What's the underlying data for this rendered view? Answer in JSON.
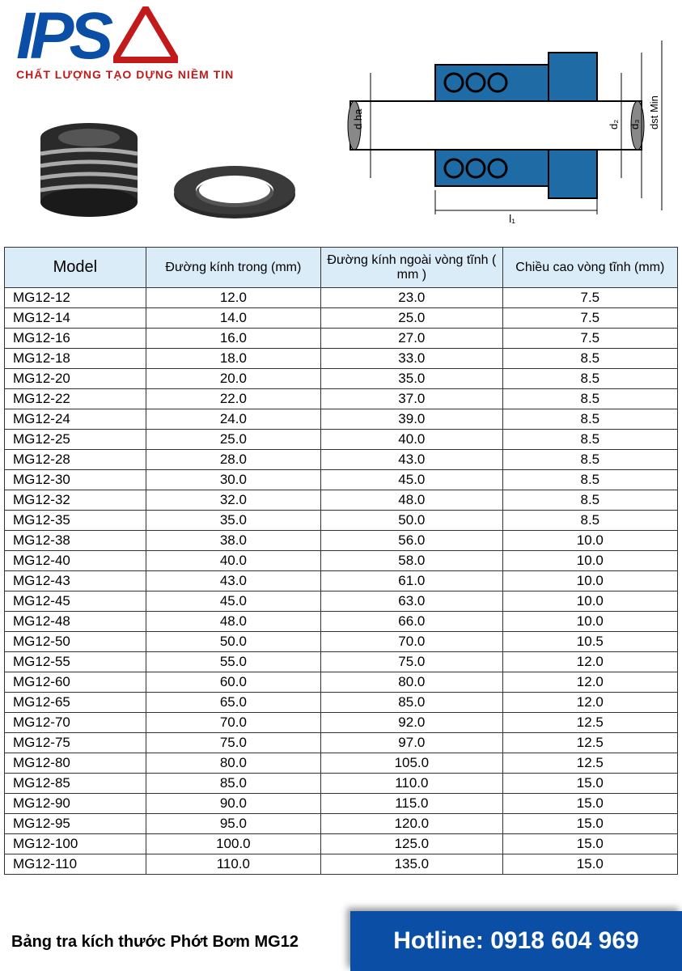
{
  "logo": {
    "text": "IPS",
    "slogan": "CHẤT LƯỢNG TẠO DỰNG NIỀM TIN",
    "brand_blue": "#0a4fa5",
    "brand_red": "#c21a1a"
  },
  "diagram_labels": {
    "d_ha": "d ha",
    "d2": "d₂",
    "d3": "d₃",
    "dst": "dst Min",
    "l1": "l₁"
  },
  "table": {
    "header_bg": "#dbecf9",
    "border_color": "#333333",
    "columns": [
      "Model",
      "Đường kính trong (mm)",
      "Đường kính ngoài vòng tĩnh ( mm )",
      "Chiều cao vòng tĩnh (mm)"
    ],
    "rows": [
      [
        "MG12-12",
        "12.0",
        "23.0",
        "7.5"
      ],
      [
        "MG12-14",
        "14.0",
        "25.0",
        "7.5"
      ],
      [
        "MG12-16",
        "16.0",
        "27.0",
        "7.5"
      ],
      [
        "MG12-18",
        "18.0",
        "33.0",
        "8.5"
      ],
      [
        "MG12-20",
        "20.0",
        "35.0",
        "8.5"
      ],
      [
        "MG12-22",
        "22.0",
        "37.0",
        "8.5"
      ],
      [
        "MG12-24",
        "24.0",
        "39.0",
        "8.5"
      ],
      [
        "MG12-25",
        "25.0",
        "40.0",
        "8.5"
      ],
      [
        "MG12-28",
        "28.0",
        "43.0",
        "8.5"
      ],
      [
        "MG12-30",
        "30.0",
        "45.0",
        "8.5"
      ],
      [
        "MG12-32",
        "32.0",
        "48.0",
        "8.5"
      ],
      [
        "MG12-35",
        "35.0",
        "50.0",
        "8.5"
      ],
      [
        "MG12-38",
        "38.0",
        "56.0",
        "10.0"
      ],
      [
        "MG12-40",
        "40.0",
        "58.0",
        "10.0"
      ],
      [
        "MG12-43",
        "43.0",
        "61.0",
        "10.0"
      ],
      [
        "MG12-45",
        "45.0",
        "63.0",
        "10.0"
      ],
      [
        "MG12-48",
        "48.0",
        "66.0",
        "10.0"
      ],
      [
        "MG12-50",
        "50.0",
        "70.0",
        "10.5"
      ],
      [
        "MG12-55",
        "55.0",
        "75.0",
        "12.0"
      ],
      [
        "MG12-60",
        "60.0",
        "80.0",
        "12.0"
      ],
      [
        "MG12-65",
        "65.0",
        "85.0",
        "12.0"
      ],
      [
        "MG12-70",
        "70.0",
        "92.0",
        "12.5"
      ],
      [
        "MG12-75",
        "75.0",
        "97.0",
        "12.5"
      ],
      [
        "MG12-80",
        "80.0",
        "105.0",
        "12.5"
      ],
      [
        "MG12-85",
        "85.0",
        "110.0",
        "15.0"
      ],
      [
        "MG12-90",
        "90.0",
        "115.0",
        "15.0"
      ],
      [
        "MG12-95",
        "95.0",
        "120.0",
        "15.0"
      ],
      [
        "MG12-100",
        "100.0",
        "125.0",
        "15.0"
      ],
      [
        "MG12-110",
        "110.0",
        "135.0",
        "15.0"
      ]
    ]
  },
  "footer": {
    "caption": "Bảng tra kích thước Phớt Bơm MG12",
    "hotline": "Hotline: 0918 604 969",
    "hotline_bg": "#0a4fa5"
  }
}
